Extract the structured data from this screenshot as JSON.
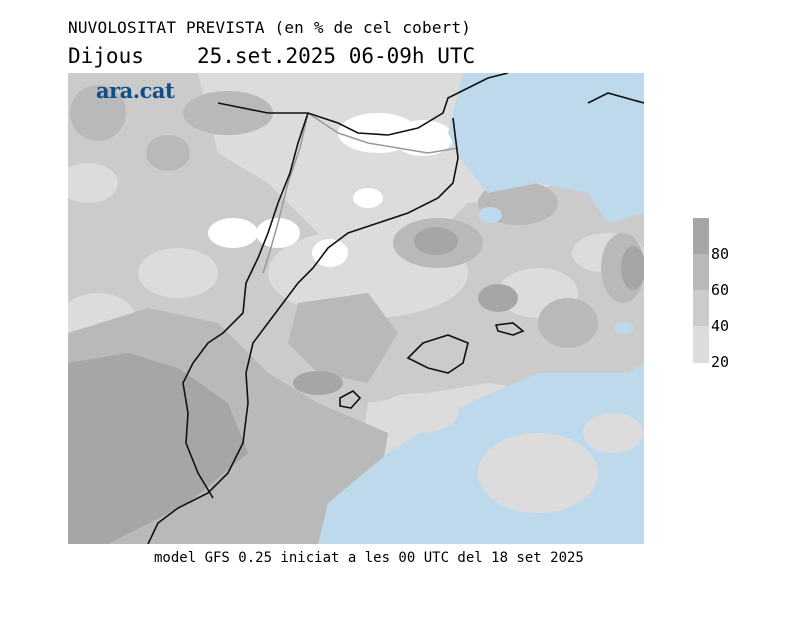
{
  "header": {
    "title": "NUVOLOSITAT PREVISTA (en % de cel cobert)",
    "day": "Dijous",
    "datetime": "25.set.2025 06-09h UTC"
  },
  "logo": {
    "text": "ara.cat"
  },
  "footer": {
    "text": "model GFS 0.25 iniciat a les 00 UTC del 18 set 2025"
  },
  "legend": {
    "labels": [
      "80",
      "60",
      "40",
      "20"
    ],
    "bands": [
      {
        "range": "80-100",
        "color": "#a6a6a6"
      },
      {
        "range": "60-80",
        "color": "#b9b9b9"
      },
      {
        "range": "40-60",
        "color": "#cbcbcb"
      },
      {
        "range": "20-40",
        "color": "#dcdcdc"
      }
    ]
  },
  "map": {
    "sea_color": "#bed9eb",
    "clear_color": "#ffffff",
    "coast_color": "#111111",
    "border_color": "#999999"
  }
}
